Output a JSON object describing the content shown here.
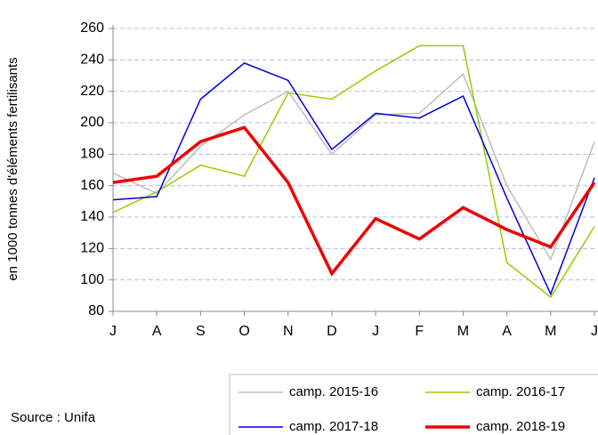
{
  "chart_data": {
    "type": "line",
    "y_label": "en 1000 tonnes d'éléments fertilisants",
    "source": "Source : Unifa",
    "categories": [
      "J",
      "A",
      "S",
      "O",
      "N",
      "D",
      "J",
      "F",
      "M",
      "A",
      "M",
      "J"
    ],
    "series": [
      {
        "name": "camp. 2015-16",
        "color": "#bdbdbd",
        "width": 1.5,
        "values": [
          168,
          155,
          185,
          205,
          220,
          180,
          205,
          206,
          231,
          160,
          113,
          188
        ]
      },
      {
        "name": "camp. 2016-17",
        "color": "#99cc00",
        "width": 1.5,
        "values": [
          143,
          156,
          173,
          166,
          219,
          215,
          233,
          249,
          249,
          111,
          89,
          134
        ]
      },
      {
        "name": "camp. 2017-18",
        "color": "#0000dd",
        "width": 1.5,
        "values": [
          151,
          153,
          215,
          238,
          227,
          183,
          206,
          203,
          217,
          152,
          91,
          165
        ]
      },
      {
        "name": "camp. 2018-19",
        "color": "#ee0000",
        "width": 3.5,
        "values": [
          162,
          166,
          188,
          197,
          162,
          104,
          139,
          126,
          146,
          132,
          121,
          162
        ]
      }
    ],
    "ylim": [
      80,
      260
    ],
    "yticks": [
      80,
      100,
      120,
      140,
      160,
      180,
      200,
      220,
      240,
      260
    ],
    "grid": true
  }
}
